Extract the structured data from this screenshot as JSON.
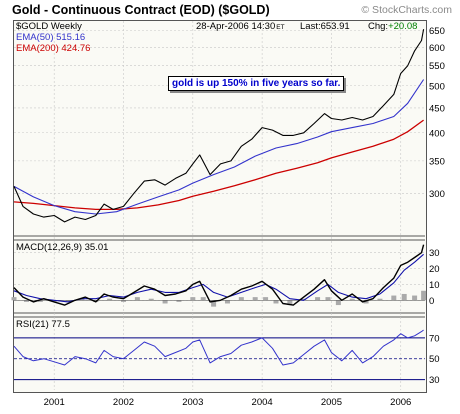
{
  "header": {
    "title": "Gold - Continuous Contract (EOD) ($GOLD)",
    "watermark": "© StockCharts.com"
  },
  "price_panel": {
    "symbol": "$GOLD Weekly",
    "ema50": "EMA(50) 515.16",
    "ema200": "EMA(200) 424.76",
    "date": "28-Apr-2006 14:30",
    "tz": "ET",
    "last": "Last:653.91",
    "chg_label": "Chg:",
    "chg_value": "+20.08",
    "annotation": "gold is up 150% in five years so far."
  },
  "macd_panel": {
    "label": "MACD(12,26,9)  35.01"
  },
  "rsi_panel": {
    "label": "RSI(21)  77.5"
  },
  "colors": {
    "price": "#000000",
    "ema50": "#3333cc",
    "ema200": "#cc0000",
    "macd_line": "#000000",
    "signal_line": "#1111aa",
    "histogram": "#aaaaaa",
    "rsi": "#3333cc",
    "rsi_band": "#000080",
    "change": "#008000",
    "annotation": "#0000cc"
  },
  "chart_data": [
    {
      "type": "line",
      "panel": "price",
      "title": "Gold - Continuous Contract (EOD) ($GOLD)",
      "scale": "log",
      "ylim": [
        245,
        680
      ],
      "xlim": [
        2000.42,
        2006.35
      ],
      "yticks": [
        300,
        350,
        400,
        450,
        500,
        550,
        600,
        650
      ],
      "xticks": [
        "2001",
        "2002",
        "2003",
        "2004",
        "2005",
        "2006"
      ],
      "xtick_pos": [
        2001.0,
        2002.0,
        2003.0,
        2004.0,
        2005.0,
        2006.0
      ],
      "series": [
        {
          "name": "$GOLD Weekly",
          "points": [
            [
              2000.42,
              310
            ],
            [
              2000.55,
              282
            ],
            [
              2000.7,
              272
            ],
            [
              2000.85,
              268
            ],
            [
              2001.0,
              270
            ],
            [
              2001.15,
              262
            ],
            [
              2001.3,
              268
            ],
            [
              2001.45,
              265
            ],
            [
              2001.6,
              270
            ],
            [
              2001.72,
              285
            ],
            [
              2001.85,
              278
            ],
            [
              2002.0,
              282
            ],
            [
              2002.15,
              300
            ],
            [
              2002.3,
              318
            ],
            [
              2002.45,
              320
            ],
            [
              2002.6,
              312
            ],
            [
              2002.75,
              322
            ],
            [
              2002.9,
              330
            ],
            [
              2003.0,
              345
            ],
            [
              2003.1,
              360
            ],
            [
              2003.25,
              328
            ],
            [
              2003.4,
              345
            ],
            [
              2003.55,
              350
            ],
            [
              2003.7,
              375
            ],
            [
              2003.85,
              388
            ],
            [
              2004.0,
              410
            ],
            [
              2004.15,
              405
            ],
            [
              2004.3,
              395
            ],
            [
              2004.45,
              395
            ],
            [
              2004.6,
              400
            ],
            [
              2004.75,
              418
            ],
            [
              2004.9,
              438
            ],
            [
              2005.0,
              428
            ],
            [
              2005.15,
              425
            ],
            [
              2005.3,
              430
            ],
            [
              2005.45,
              425
            ],
            [
              2005.6,
              432
            ],
            [
              2005.75,
              455
            ],
            [
              2005.9,
              480
            ],
            [
              2006.0,
              530
            ],
            [
              2006.1,
              550
            ],
            [
              2006.2,
              590
            ],
            [
              2006.3,
              620
            ],
            [
              2006.33,
              653.91
            ]
          ]
        },
        {
          "name": "EMA(50)",
          "points": [
            [
              2000.42,
              310
            ],
            [
              2000.7,
              295
            ],
            [
              2001.0,
              283
            ],
            [
              2001.3,
              275
            ],
            [
              2001.6,
              272
            ],
            [
              2001.9,
              275
            ],
            [
              2002.2,
              285
            ],
            [
              2002.5,
              295
            ],
            [
              2002.8,
              305
            ],
            [
              2003.0,
              315
            ],
            [
              2003.3,
              328
            ],
            [
              2003.6,
              340
            ],
            [
              2003.9,
              358
            ],
            [
              2004.2,
              372
            ],
            [
              2004.5,
              380
            ],
            [
              2004.8,
              392
            ],
            [
              2005.0,
              402
            ],
            [
              2005.3,
              410
            ],
            [
              2005.6,
              418
            ],
            [
              2005.9,
              432
            ],
            [
              2006.1,
              460
            ],
            [
              2006.33,
              515.16
            ]
          ]
        },
        {
          "name": "EMA(200)",
          "points": [
            [
              2000.42,
              288
            ],
            [
              2000.7,
              286
            ],
            [
              2001.0,
              283
            ],
            [
              2001.3,
              280
            ],
            [
              2001.6,
              278
            ],
            [
              2001.9,
              278
            ],
            [
              2002.2,
              280
            ],
            [
              2002.5,
              284
            ],
            [
              2002.8,
              290
            ],
            [
              2003.0,
              296
            ],
            [
              2003.3,
              303
            ],
            [
              2003.6,
              311
            ],
            [
              2003.9,
              320
            ],
            [
              2004.2,
              330
            ],
            [
              2004.5,
              338
            ],
            [
              2004.8,
              347
            ],
            [
              2005.0,
              355
            ],
            [
              2005.3,
              365
            ],
            [
              2005.6,
              375
            ],
            [
              2005.9,
              388
            ],
            [
              2006.1,
              402
            ],
            [
              2006.33,
              424.76
            ]
          ]
        }
      ]
    },
    {
      "type": "line",
      "panel": "macd",
      "title": "MACD(12,26,9)",
      "ylim": [
        -8,
        38
      ],
      "yticks": [
        0,
        10,
        20,
        30
      ],
      "series": [
        {
          "name": "MACD",
          "points": [
            [
              2000.42,
              8
            ],
            [
              2000.55,
              2
            ],
            [
              2000.7,
              -1
            ],
            [
              2000.85,
              1
            ],
            [
              2001.0,
              -1
            ],
            [
              2001.15,
              -3
            ],
            [
              2001.3,
              0
            ],
            [
              2001.45,
              2
            ],
            [
              2001.6,
              -1
            ],
            [
              2001.72,
              4
            ],
            [
              2001.85,
              2
            ],
            [
              2002.0,
              1
            ],
            [
              2002.15,
              5
            ],
            [
              2002.3,
              9
            ],
            [
              2002.45,
              7
            ],
            [
              2002.6,
              3
            ],
            [
              2002.75,
              4
            ],
            [
              2002.9,
              6
            ],
            [
              2003.0,
              10
            ],
            [
              2003.1,
              12
            ],
            [
              2003.25,
              -1
            ],
            [
              2003.4,
              0
            ],
            [
              2003.55,
              3
            ],
            [
              2003.7,
              7
            ],
            [
              2003.85,
              9
            ],
            [
              2004.0,
              12
            ],
            [
              2004.15,
              7
            ],
            [
              2004.3,
              -2
            ],
            [
              2004.45,
              -3
            ],
            [
              2004.6,
              2
            ],
            [
              2004.75,
              7
            ],
            [
              2004.9,
              13
            ],
            [
              2005.0,
              6
            ],
            [
              2005.15,
              0
            ],
            [
              2005.3,
              4
            ],
            [
              2005.45,
              -1
            ],
            [
              2005.6,
              1
            ],
            [
              2005.75,
              8
            ],
            [
              2005.9,
              14
            ],
            [
              2006.0,
              22
            ],
            [
              2006.1,
              24
            ],
            [
              2006.2,
              27
            ],
            [
              2006.3,
              30
            ],
            [
              2006.33,
              35.01
            ]
          ]
        },
        {
          "name": "Signal",
          "points": [
            [
              2000.42,
              6
            ],
            [
              2000.6,
              3
            ],
            [
              2000.8,
              1
            ],
            [
              2001.0,
              0
            ],
            [
              2001.2,
              -1
            ],
            [
              2001.4,
              1
            ],
            [
              2001.6,
              1
            ],
            [
              2001.8,
              3
            ],
            [
              2002.0,
              2
            ],
            [
              2002.2,
              5
            ],
            [
              2002.4,
              7
            ],
            [
              2002.6,
              5
            ],
            [
              2002.8,
              5
            ],
            [
              2003.0,
              8
            ],
            [
              2003.15,
              10
            ],
            [
              2003.3,
              5
            ],
            [
              2003.5,
              2
            ],
            [
              2003.7,
              5
            ],
            [
              2003.9,
              8
            ],
            [
              2004.05,
              10
            ],
            [
              2004.2,
              7
            ],
            [
              2004.4,
              1
            ],
            [
              2004.6,
              0
            ],
            [
              2004.8,
              6
            ],
            [
              2004.95,
              10
            ],
            [
              2005.1,
              5
            ],
            [
              2005.3,
              2
            ],
            [
              2005.5,
              1
            ],
            [
              2005.7,
              4
            ],
            [
              2005.9,
              11
            ],
            [
              2006.05,
              19
            ],
            [
              2006.2,
              24
            ],
            [
              2006.33,
              29
            ]
          ]
        },
        {
          "name": "Histogram",
          "points": [
            [
              2000.42,
              2
            ],
            [
              2000.6,
              -1
            ],
            [
              2000.8,
              -1
            ],
            [
              2001.0,
              -1
            ],
            [
              2001.2,
              -1
            ],
            [
              2001.4,
              1
            ],
            [
              2001.6,
              -1
            ],
            [
              2001.8,
              1
            ],
            [
              2002.0,
              -1
            ],
            [
              2002.2,
              2
            ],
            [
              2002.4,
              1
            ],
            [
              2002.6,
              -2
            ],
            [
              2002.8,
              -1
            ],
            [
              2003.0,
              2
            ],
            [
              2003.15,
              2
            ],
            [
              2003.3,
              -4
            ],
            [
              2003.5,
              -2
            ],
            [
              2003.7,
              2
            ],
            [
              2003.9,
              2
            ],
            [
              2004.05,
              2
            ],
            [
              2004.2,
              -2
            ],
            [
              2004.4,
              -3
            ],
            [
              2004.6,
              1
            ],
            [
              2004.8,
              2
            ],
            [
              2004.95,
              2
            ],
            [
              2005.1,
              -3
            ],
            [
              2005.3,
              1
            ],
            [
              2005.5,
              -2
            ],
            [
              2005.7,
              1
            ],
            [
              2005.9,
              3
            ],
            [
              2006.05,
              4
            ],
            [
              2006.2,
              3
            ],
            [
              2006.33,
              6
            ]
          ]
        }
      ]
    },
    {
      "type": "line",
      "panel": "rsi",
      "title": "RSI(21)",
      "ylim": [
        20,
        90
      ],
      "yticks": [
        30,
        50,
        70
      ],
      "reference_lines": [
        70,
        30
      ],
      "series": [
        {
          "name": "RSI(21)",
          "points": [
            [
              2000.42,
              62
            ],
            [
              2000.55,
              52
            ],
            [
              2000.7,
              48
            ],
            [
              2000.85,
              50
            ],
            [
              2001.0,
              47
            ],
            [
              2001.15,
              44
            ],
            [
              2001.3,
              52
            ],
            [
              2001.45,
              50
            ],
            [
              2001.6,
              46
            ],
            [
              2001.72,
              58
            ],
            [
              2001.85,
              52
            ],
            [
              2002.0,
              50
            ],
            [
              2002.15,
              58
            ],
            [
              2002.3,
              66
            ],
            [
              2002.45,
              62
            ],
            [
              2002.6,
              52
            ],
            [
              2002.75,
              56
            ],
            [
              2002.9,
              60
            ],
            [
              2003.0,
              66
            ],
            [
              2003.1,
              68
            ],
            [
              2003.25,
              46
            ],
            [
              2003.4,
              52
            ],
            [
              2003.55,
              55
            ],
            [
              2003.7,
              63
            ],
            [
              2003.85,
              66
            ],
            [
              2004.0,
              70
            ],
            [
              2004.15,
              60
            ],
            [
              2004.3,
              44
            ],
            [
              2004.45,
              46
            ],
            [
              2004.6,
              54
            ],
            [
              2004.75,
              62
            ],
            [
              2004.9,
              68
            ],
            [
              2005.0,
              56
            ],
            [
              2005.15,
              48
            ],
            [
              2005.3,
              58
            ],
            [
              2005.45,
              46
            ],
            [
              2005.6,
              52
            ],
            [
              2005.75,
              62
            ],
            [
              2005.9,
              68
            ],
            [
              2006.0,
              74
            ],
            [
              2006.1,
              70
            ],
            [
              2006.2,
              72
            ],
            [
              2006.3,
              76
            ],
            [
              2006.33,
              77.5
            ]
          ]
        }
      ]
    }
  ]
}
